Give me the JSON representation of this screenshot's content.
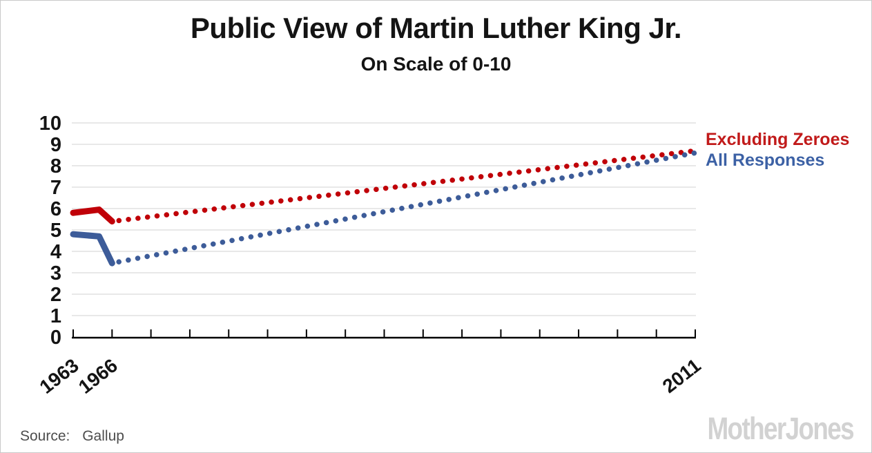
{
  "chart_data": {
    "type": "line",
    "title": "Public View of Martin Luther King Jr.",
    "subtitle": "On Scale of 0-10",
    "xlim": [
      1963,
      2011
    ],
    "ylim": [
      0,
      10
    ],
    "ytick_interval": 1,
    "ytick_labels": [
      "0",
      "1",
      "2",
      "3",
      "4",
      "5",
      "6",
      "7",
      "8",
      "9",
      "10"
    ],
    "xtick_interval_years": 3,
    "xtick_labeled_years": [
      1963,
      1966,
      2011
    ],
    "xtick_labels": [
      "1963",
      "1966",
      "2011"
    ],
    "grid": "horizontal-light-gray",
    "legend_position": "right-of-plot-top",
    "series": [
      {
        "name": "Excluding Zeroes",
        "color": "#c00008",
        "legend_color": "#c11a1a",
        "style": "solid 1963-1966, dotted projection to 2011",
        "solid_points": [
          [
            1963,
            5.8
          ],
          [
            1965,
            5.95
          ],
          [
            1966,
            5.4
          ]
        ],
        "dotted_points": [
          [
            1966,
            5.4
          ],
          [
            2011,
            8.7
          ]
        ]
      },
      {
        "name": "All Responses",
        "color": "#3d5c99",
        "legend_color": "#3c61a5",
        "style": "solid 1963-1966, dotted projection to 2011",
        "solid_points": [
          [
            1963,
            4.8
          ],
          [
            1965,
            4.7
          ],
          [
            1966,
            3.45
          ]
        ],
        "dotted_points": [
          [
            1966,
            3.45
          ],
          [
            2011,
            8.6
          ]
        ]
      }
    ],
    "source_prefix": "Source:",
    "source_value": "Gallup"
  },
  "branding": {
    "logo_text": "MotherJones"
  }
}
